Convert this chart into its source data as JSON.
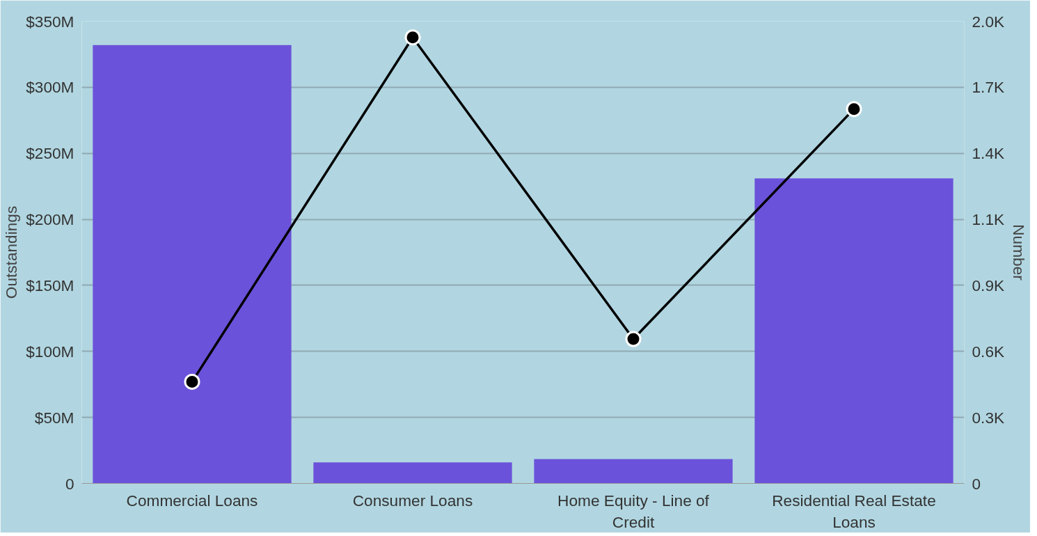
{
  "chart_data": {
    "type": "bar",
    "categories": [
      "Commercial Loans",
      "Consumer Loans",
      "Home Equity - Line of Credit",
      "Residential Real Estate Loans"
    ],
    "ylabel": "Outstandings",
    "y2label": "Number",
    "series": [
      {
        "color": "#6b52da",
        "values": [
          332,
          16,
          18.5,
          231
        ]
      },
      {
        "type": "line",
        "axis": "y2",
        "color": "#000000",
        "values": [
          440,
          1930,
          625,
          1620
        ]
      }
    ],
    "ylim": [
      0,
      350
    ],
    "yticks": [
      {
        "value": 0,
        "label": "0"
      },
      {
        "value": 50,
        "label": "$50M"
      },
      {
        "value": 100,
        "label": "$100M"
      },
      {
        "value": 150,
        "label": "$150M"
      },
      {
        "value": 200,
        "label": "$200M"
      },
      {
        "value": 250,
        "label": "$250M"
      },
      {
        "value": 300,
        "label": "$300M"
      },
      {
        "value": 350,
        "label": "$350M"
      }
    ],
    "y2lim": [
      0,
      2000
    ],
    "y2ticks": [
      {
        "value": 0,
        "label": "0"
      },
      {
        "value": 285.714,
        "label": "0.3K"
      },
      {
        "value": 571.429,
        "label": "0.6K"
      },
      {
        "value": 857.143,
        "label": "0.9K"
      },
      {
        "value": 1142.857,
        "label": "1.1K"
      },
      {
        "value": 1428.571,
        "label": "1.4K"
      },
      {
        "value": 1714.286,
        "label": "1.7K"
      },
      {
        "value": 2000,
        "label": "2.0K"
      }
    ],
    "grid": "y",
    "marker": "circle",
    "line_style": "solid"
  }
}
